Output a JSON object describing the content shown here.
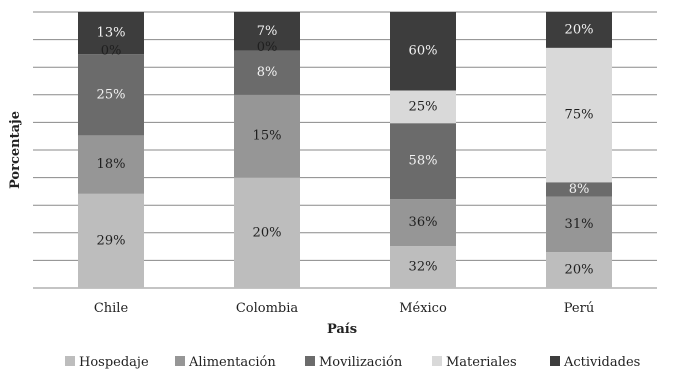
{
  "chart_data": {
    "type": "bar",
    "stacked": true,
    "xlabel": "País",
    "ylabel": "Porcentaje",
    "categories": [
      "Chile",
      "Colombia",
      "México",
      "Perú"
    ],
    "series": [
      {
        "name": "Hospedaje",
        "color": "#bdbdbd",
        "values": [
          29,
          20,
          32,
          20
        ],
        "labels": [
          "29%",
          "20%",
          "32%",
          "20%"
        ]
      },
      {
        "name": "Alimentación",
        "color": "#969696",
        "values": [
          18,
          15,
          36,
          31
        ],
        "labels": [
          "18%",
          "15%",
          "36%",
          "31%"
        ]
      },
      {
        "name": "Movilización",
        "color": "#6b6b6b",
        "values": [
          25,
          8,
          58,
          8
        ],
        "labels": [
          "25%",
          "8%",
          "58%",
          "8%"
        ]
      },
      {
        "name": "Materiales",
        "color": "#d9d9d9",
        "values": [
          0,
          0,
          25,
          75
        ],
        "labels": [
          "0%",
          "0%",
          "25%",
          "75%"
        ]
      },
      {
        "name": "Actividades",
        "color": "#3d3d3d",
        "values": [
          13,
          7,
          60,
          20
        ],
        "labels": [
          "13%",
          "7%",
          "60%",
          "20%"
        ]
      }
    ],
    "grid": true,
    "gridlines": 11,
    "legend_position": "bottom"
  }
}
